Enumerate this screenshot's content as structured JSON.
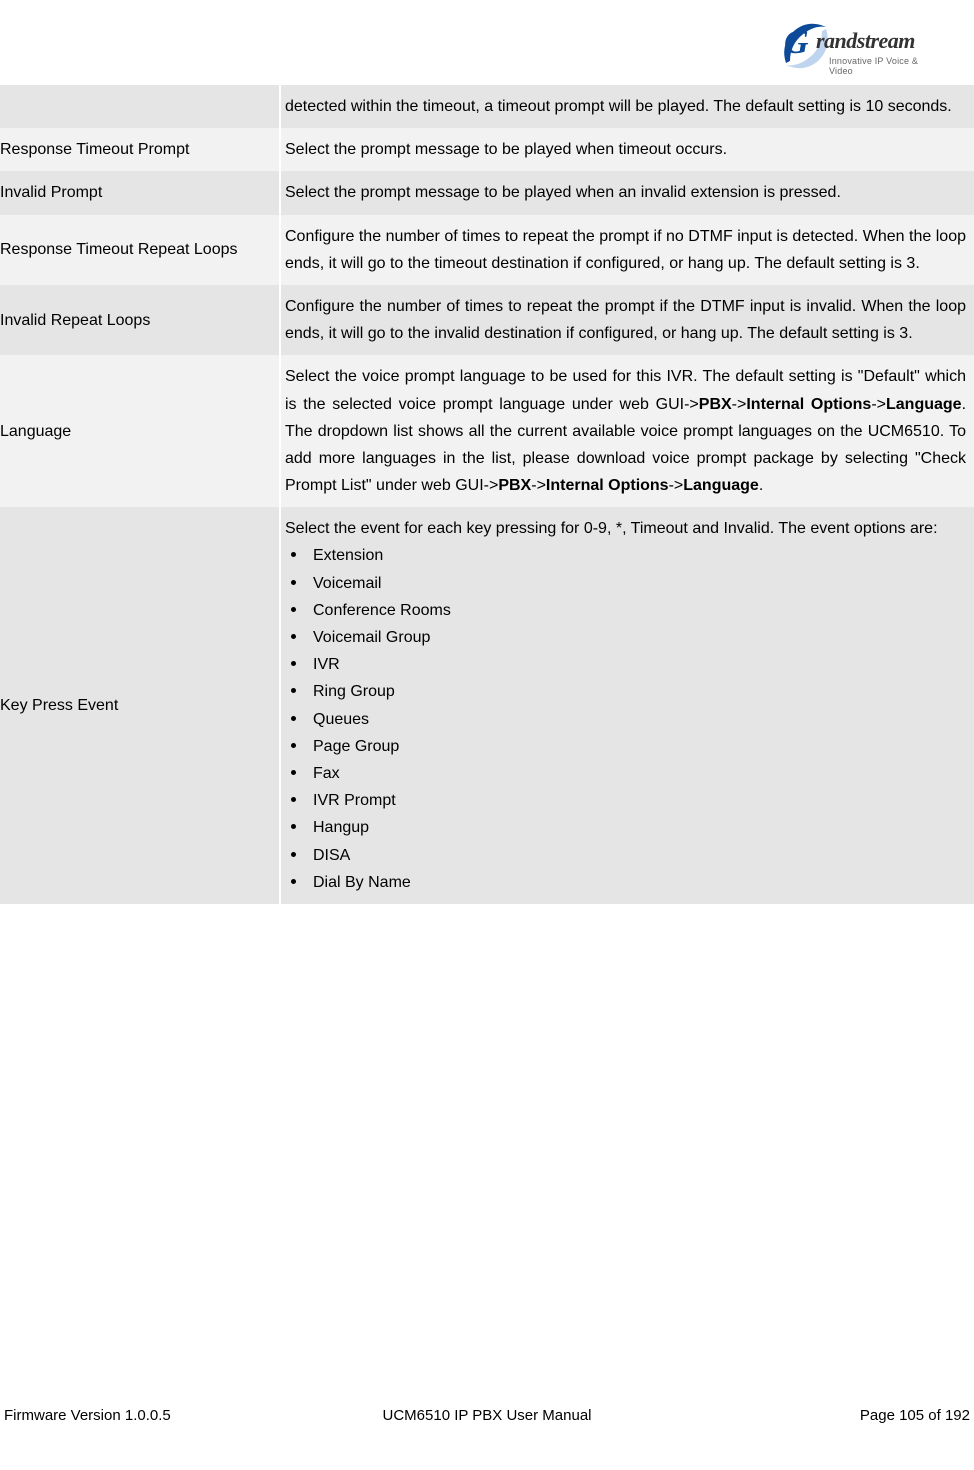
{
  "logo": {
    "brand": "randstream",
    "letter": "G",
    "tagline": "Innovative IP Voice & Video"
  },
  "colors": {
    "row_odd_bg": "#e5e5e5",
    "row_even_bg": "#f2f2f2",
    "row_divider": "#ffffff",
    "text": "#000000",
    "logo_blue": "#0d4b99",
    "logo_text": "#333333",
    "logo_tag": "#666666",
    "page_bg": "#ffffff"
  },
  "fontsize": {
    "body": 16,
    "footer": 15,
    "logo_text": 22,
    "logo_tag": 9
  },
  "rows": [
    {
      "label": "",
      "desc": "detected within the timeout, a timeout prompt will be played. The default setting is 10 seconds.",
      "zebra": "odd"
    },
    {
      "label": "Response Timeout Prompt",
      "desc": "Select the prompt message to be played when timeout occurs.",
      "zebra": "even"
    },
    {
      "label": "Invalid Prompt",
      "desc": "Select the prompt message to be played when an invalid extension is pressed.",
      "zebra": "odd"
    },
    {
      "label": "Response Timeout Repeat Loops",
      "desc": "Configure the number of times to repeat the prompt if no DTMF input is detected. When the loop ends, it will go to the timeout destination if configured, or hang up. The default setting is 3.",
      "zebra": "even"
    },
    {
      "label": "Invalid Repeat Loops",
      "desc": "Configure the number of times to repeat the prompt if the DTMF input is invalid. When the loop ends, it will go to the invalid destination if configured, or hang up. The default setting is 3.",
      "zebra": "odd"
    },
    {
      "label": "Language",
      "desc_html": "Select the voice prompt language to be used for this IVR. The default setting is \"Default\" which is the selected voice prompt language under web GUI-><b>PBX</b>-><b>Internal Options</b>-><b>Language</b>. The dropdown list shows all the current available voice prompt languages on the UCM6510. To add more languages in the list, please download voice prompt package by selecting \"Check Prompt List\" under web GUI-><b>PBX</b>-><b>Internal Options</b>-><b>Language</b>.",
      "zebra": "even"
    },
    {
      "label": "Key Press Event",
      "desc_intro": "Select the event for each key pressing for 0-9, *, Timeout and Invalid. The event options are:",
      "bullets": [
        "Extension",
        "Voicemail",
        "Conference Rooms",
        "Voicemail Group",
        "IVR",
        "Ring Group",
        "Queues",
        "Page Group",
        "Fax",
        "IVR Prompt",
        "Hangup",
        "DISA",
        "Dial By Name"
      ],
      "zebra": "odd"
    }
  ],
  "footer": {
    "left": "Firmware Version 1.0.0.5",
    "center": "UCM6510 IP PBX User Manual",
    "right": "Page 105 of 192"
  }
}
